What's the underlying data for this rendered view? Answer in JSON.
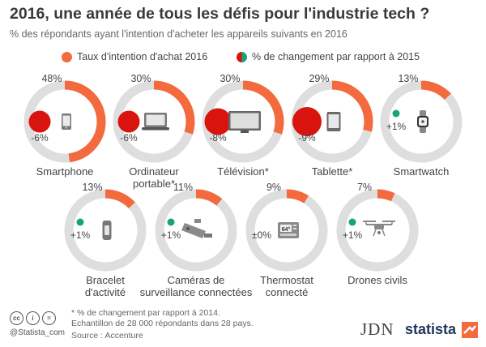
{
  "title": "2016, une année de tous les défis pour l'industrie tech ?",
  "subtitle": "% des répondants ayant l'intention d'acheter les appareils suivants en 2016",
  "colors": {
    "orange": "#f26a3d",
    "gray_ring": "#dedede",
    "red": "#d9140e",
    "green": "#1aa37a"
  },
  "legend": {
    "intent_label": "Taux d'intention d'achat 2016",
    "change_label": "% de changement par rapport à 2015"
  },
  "chart_data": {
    "type": "donut",
    "unit": "%",
    "series": [
      {
        "name": "Taux d'intention d'achat 2016"
      },
      {
        "name": "% de changement par rapport à 2015"
      }
    ],
    "items": [
      {
        "category": "Smartphone",
        "intent": 48,
        "intent_label": "48%",
        "change": -6,
        "change_label": "-6%",
        "icon": "smartphone-icon"
      },
      {
        "category": "Ordinateur portable*",
        "intent": 30,
        "intent_label": "30%",
        "change": -6,
        "change_label": "-6%",
        "icon": "laptop-icon"
      },
      {
        "category": "Télévision*",
        "intent": 30,
        "intent_label": "30%",
        "change": -8,
        "change_label": "-8%",
        "icon": "television-icon"
      },
      {
        "category": "Tablette*",
        "intent": 29,
        "intent_label": "29%",
        "change": -9,
        "change_label": "-9%",
        "icon": "tablet-icon"
      },
      {
        "category": "Smartwatch",
        "intent": 13,
        "intent_label": "13%",
        "change": 1,
        "change_label": "+1%",
        "icon": "smartwatch-icon"
      },
      {
        "category": "Bracelet d'activité",
        "intent": 13,
        "intent_label": "13%",
        "change": 1,
        "change_label": "+1%",
        "icon": "fitness-band-icon"
      },
      {
        "category": "Caméras de surveillance connectées",
        "intent": 11,
        "intent_label": "11%",
        "change": 1,
        "change_label": "+1%",
        "icon": "security-camera-icon"
      },
      {
        "category": "Thermostat connecté",
        "intent": 9,
        "intent_label": "9%",
        "change": 0,
        "change_label": "±0%",
        "icon": "thermostat-icon"
      },
      {
        "category": "Drones civils",
        "intent": 7,
        "intent_label": "7%",
        "change": 1,
        "change_label": "+1%",
        "icon": "drone-icon"
      }
    ],
    "category_lines": [
      [
        "Smartphone"
      ],
      [
        "Ordinateur",
        "portable*"
      ],
      [
        "Télévision*"
      ],
      [
        "Tablette*"
      ],
      [
        "Smartwatch"
      ],
      [
        "Bracelet",
        "d'activité"
      ],
      [
        "Caméras de",
        "surveillance connectées"
      ],
      [
        "Thermostat",
        "connecté"
      ],
      [
        "Drones civils"
      ]
    ]
  },
  "thermostat_display": "64°",
  "footnotes": [
    "* % de changement par rapport à 2014.",
    "Echantillon de 28 000 répondants dans 28 pays.",
    "Source : Accenture"
  ],
  "credit": "@Statista_com",
  "license_icons": [
    "cc-icon",
    "by-icon",
    "nd-icon"
  ],
  "license_glyphs": [
    "cc",
    "i",
    "="
  ],
  "brands": {
    "jdn": "JDN",
    "statista": "statista"
  }
}
